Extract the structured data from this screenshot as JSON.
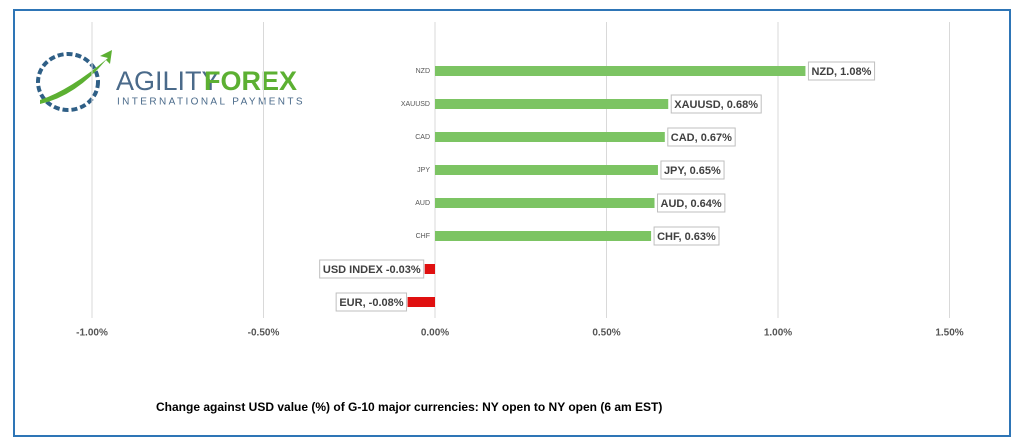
{
  "logo": {
    "name_left": "AGILITY",
    "name_right": "FOREX",
    "tagline": "INTERNATIONAL PAYMENTS"
  },
  "chart_data": {
    "type": "hbar",
    "title": "Change against  USD value (%)  of  G-10 major currencies:  NY open to NY open  (6 am EST)",
    "categories": [
      "NZD",
      "XAUUSD",
      "CAD",
      "JPY",
      "AUD",
      "CHF",
      null,
      null
    ],
    "values": [
      1.08,
      0.68,
      0.67,
      0.65,
      0.64,
      0.63,
      -0.03,
      -0.08
    ],
    "value_labels": [
      "NZD, 1.08%",
      "XAUUSD, 0.68%",
      "CAD, 0.67%",
      "JPY, 0.65%",
      "AUD, 0.64%",
      "CHF, 0.63%",
      "USD INDEX -0.03%",
      "EUR, -0.08%"
    ],
    "positive_color": "#7cc463",
    "negative_color": "#e01010",
    "xlim": [
      -1,
      1.5
    ],
    "xticks": [
      {
        "value": -1,
        "label": "-1.00%"
      },
      {
        "value": -0.5,
        "label": "-0.50%"
      },
      {
        "value": 0,
        "label": "0.00%"
      },
      {
        "value": 0.5,
        "label": "0.50%"
      },
      {
        "value": 1,
        "label": "1.00%"
      },
      {
        "value": 1.5,
        "label": "1.50%"
      }
    ],
    "grid": true
  }
}
